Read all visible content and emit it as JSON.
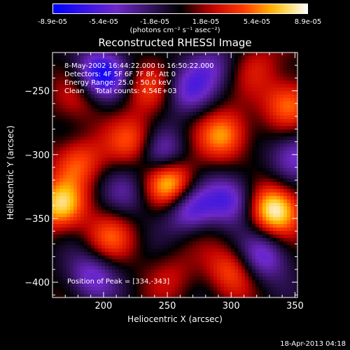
{
  "chart_data": {
    "type": "heatmap",
    "title": "Reconstructed RHESSI Image",
    "xlabel": "Heliocentric X (arcsec)",
    "ylabel": "Heliocentric Y (arcsec)",
    "xlim": [
      160,
      352
    ],
    "ylim": [
      -412,
      -220
    ],
    "x_ticks": [
      200,
      250,
      300,
      350
    ],
    "y_ticks": [
      -250,
      -300,
      -350,
      -400
    ],
    "colorbar": {
      "ticks": [
        "-8.9e-05",
        "-5.4e-05",
        "-1.8e-05",
        "1.8e-05",
        "5.4e-05",
        "8.9e-05"
      ],
      "units": "(photons cm⁻² s⁻¹ asec⁻²)",
      "range": [
        -8.9e-05,
        8.9e-05
      ]
    },
    "annotations": {
      "time_range": "8-May-2002 16:44:22.000 to 16:50:22.000",
      "detectors": "Detectors: 4F 5F 6F 7F 8F, Att 0",
      "energy_range": "Energy Range: 25.0 - 50.0 keV",
      "clean_counts": "Clean     Total counts: 4.54E+03",
      "peak_position": "Position of Peak = [334,-343]"
    },
    "peaks": [
      {
        "x": 252,
        "y": -322,
        "value": 8e-05
      },
      {
        "x": 334,
        "y": -343,
        "value": 8.9e-05
      },
      {
        "x": 166,
        "y": -340,
        "value": 7e-05
      },
      {
        "x": 295,
        "y": -285,
        "value": 6e-05
      },
      {
        "x": 345,
        "y": -260,
        "value": 5.5e-05
      },
      {
        "x": 225,
        "y": -290,
        "value": 5e-05
      },
      {
        "x": 180,
        "y": -305,
        "value": 4.5e-05
      },
      {
        "x": 300,
        "y": -390,
        "value": 4.5e-05
      },
      {
        "x": 235,
        "y": -248,
        "value": 3.5e-05
      },
      {
        "x": 205,
        "y": -365,
        "value": 4e-05
      },
      {
        "x": 270,
        "y": -350,
        "value": 3.5e-05
      },
      {
        "x": 320,
        "y": -230,
        "value": 2.5e-05
      },
      {
        "x": 182,
        "y": -255,
        "value": 2.5e-05
      },
      {
        "x": 255,
        "y": -395,
        "value": 2e-05
      }
    ],
    "troughs": [
      {
        "x": 198,
        "y": -237,
        "value": -8e-05
      },
      {
        "x": 268,
        "y": -345,
        "value": -8.9e-05
      },
      {
        "x": 245,
        "y": -300,
        "value": -5.5e-05
      },
      {
        "x": 300,
        "y": -335,
        "value": -6e-05
      },
      {
        "x": 325,
        "y": -380,
        "value": -5.5e-05
      },
      {
        "x": 265,
        "y": -250,
        "value": -4.5e-05
      },
      {
        "x": 350,
        "y": -300,
        "value": -5e-05
      },
      {
        "x": 190,
        "y": -395,
        "value": -5e-05
      },
      {
        "x": 220,
        "y": -330,
        "value": -3e-05
      },
      {
        "x": 285,
        "y": -230,
        "value": -3.5e-05
      }
    ]
  },
  "footer_time": "18-Apr-2013 04:18",
  "colors": {
    "background": "#000000",
    "foreground": "#ffffff"
  }
}
